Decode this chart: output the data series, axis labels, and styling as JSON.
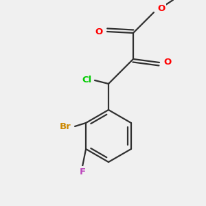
{
  "background_color": "#f0f0f0",
  "bond_color": "#303030",
  "atom_colors": {
    "O": "#ff0000",
    "Cl": "#00cc00",
    "Br": "#cc8800",
    "F": "#bb44bb"
  },
  "figsize": [
    3.0,
    3.0
  ],
  "dpi": 100,
  "bond_lw": 1.6,
  "font_size": 9.5
}
